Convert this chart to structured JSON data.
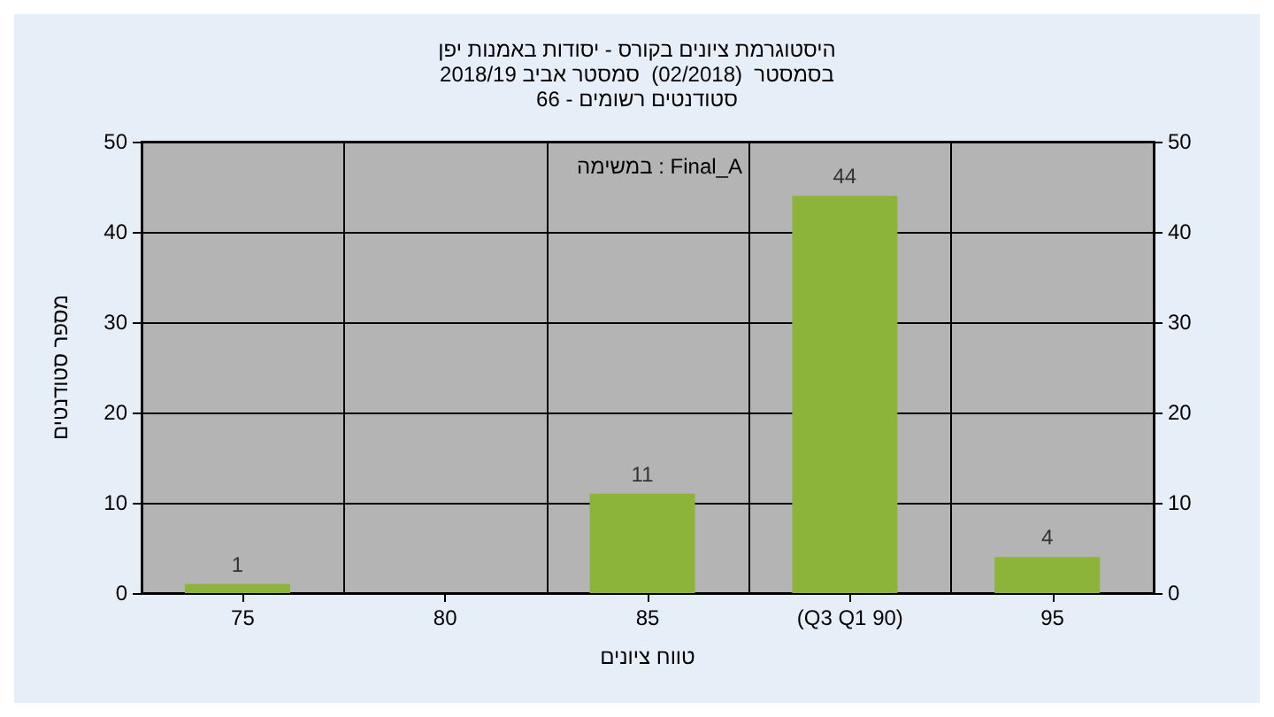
{
  "chart_data": {
    "type": "bar",
    "title": "היסטוגרמת ציונים בקורס - יסודות באמנות יפן",
    "subtitle": "בסמסטר  (02/2018)  סמסטר אביב 2018/19\nסטודנטים רשומים - 66",
    "xlabel": "טווח ציונים",
    "ylabel": "מספר סטודנטים",
    "annotations": [
      "במשימה : Final_A"
    ],
    "categories": [
      "75",
      "80",
      "85",
      "(Q3 Q1 90)",
      "95"
    ],
    "values": [
      1,
      0,
      11,
      44,
      4
    ],
    "value_labels": [
      "1",
      null,
      "11",
      "44",
      "4"
    ],
    "color": "#8db43a",
    "ylim": [
      0,
      50
    ],
    "yticks": [
      0,
      10,
      20,
      30,
      40,
      50
    ],
    "y2lim": [
      0,
      50
    ],
    "y2ticks": [
      0,
      10,
      20,
      30,
      40,
      50
    ],
    "grid": true
  }
}
